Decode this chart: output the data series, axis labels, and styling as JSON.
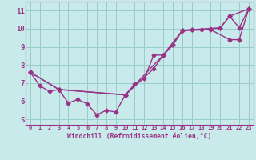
{
  "xlabel": "Windchill (Refroidissement éolien,°C)",
  "bg_color": "#c8eaea",
  "line_color": "#993388",
  "grid_color": "#99cccc",
  "xlim": [
    -0.5,
    23.5
  ],
  "ylim": [
    4.7,
    11.5
  ],
  "yticks": [
    5,
    6,
    7,
    8,
    9,
    10,
    11
  ],
  "xticks": [
    0,
    1,
    2,
    3,
    4,
    5,
    6,
    7,
    8,
    9,
    10,
    11,
    12,
    13,
    14,
    15,
    16,
    17,
    18,
    19,
    20,
    21,
    22,
    23
  ],
  "line1_x": [
    0,
    1,
    2,
    3,
    4,
    5,
    6,
    7,
    8,
    9,
    10,
    11,
    12,
    13,
    14,
    15,
    16,
    17,
    18,
    19,
    20,
    21,
    22,
    23
  ],
  "line1_y": [
    7.6,
    6.85,
    6.55,
    6.65,
    5.9,
    6.1,
    5.85,
    5.25,
    5.5,
    5.4,
    6.35,
    6.95,
    7.25,
    8.55,
    8.55,
    9.1,
    9.9,
    9.95,
    9.95,
    10.0,
    10.05,
    10.7,
    10.05,
    11.1
  ],
  "line2_x": [
    0,
    3,
    10,
    13,
    14,
    15,
    16,
    17,
    20,
    21,
    23
  ],
  "line2_y": [
    7.6,
    6.65,
    6.35,
    7.8,
    8.55,
    9.1,
    9.9,
    9.95,
    10.05,
    10.7,
    11.1
  ],
  "line3_x": [
    0,
    3,
    10,
    14,
    16,
    19,
    21,
    22,
    23
  ],
  "line3_y": [
    7.6,
    6.65,
    6.35,
    8.55,
    9.9,
    9.95,
    9.4,
    9.4,
    11.1
  ],
  "markersize": 2.5,
  "linewidth": 1.0
}
